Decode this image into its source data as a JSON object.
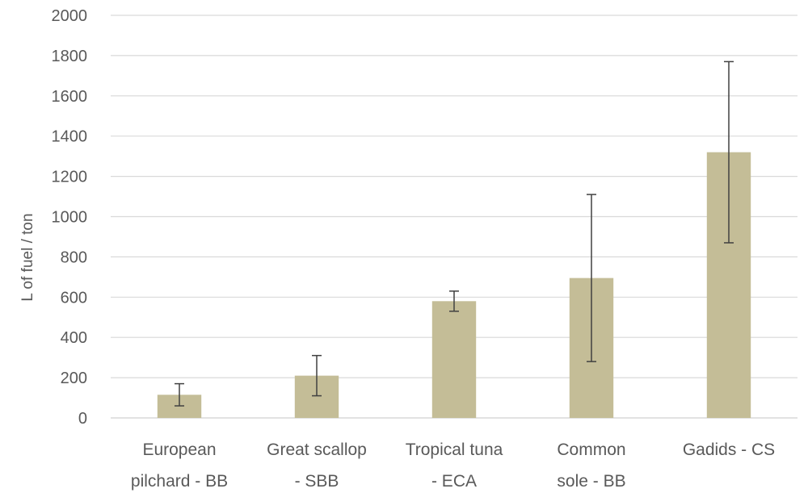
{
  "chart_data": {
    "type": "bar",
    "categories": [
      [
        "European",
        "pilchard - BB"
      ],
      [
        "Great scallop",
        "- SBB"
      ],
      [
        "Tropical tuna",
        "- ECA"
      ],
      [
        "Common",
        "sole - BB"
      ],
      [
        "Gadids - CS"
      ]
    ],
    "values": [
      115,
      210,
      580,
      695,
      1320
    ],
    "error_low": [
      60,
      110,
      530,
      280,
      870
    ],
    "error_high": [
      170,
      310,
      630,
      1110,
      1770
    ],
    "ylabel": "L of fuel / ton",
    "ylim": [
      0,
      2000
    ],
    "yticks": [
      0,
      200,
      400,
      600,
      800,
      1000,
      1200,
      1400,
      1600,
      1800,
      2000
    ],
    "grid": true,
    "legend": "none",
    "colors": {
      "bar": "#c4bd97",
      "grid": "#d9d9d9",
      "error": "#404040",
      "text": "#595959"
    }
  }
}
